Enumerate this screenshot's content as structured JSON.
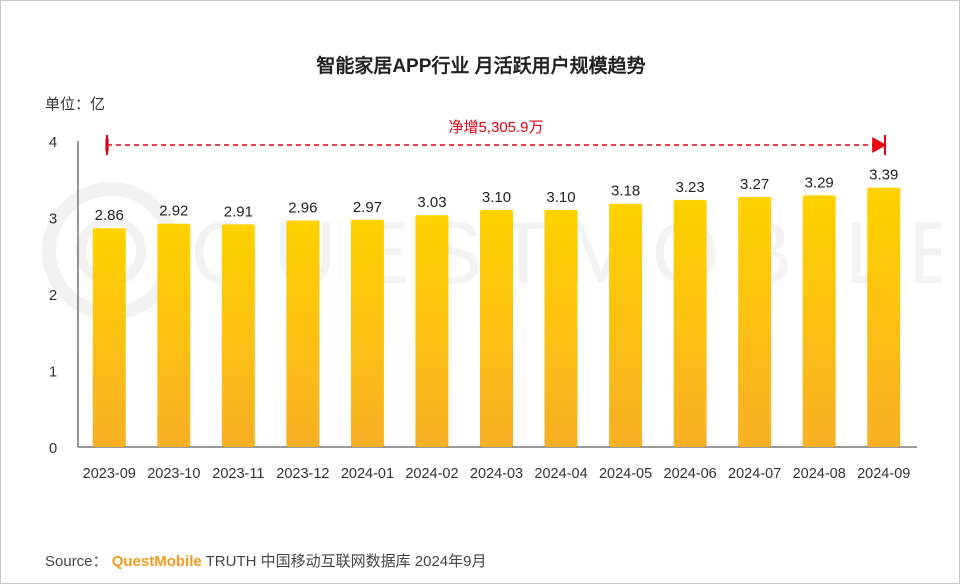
{
  "title": "智能家居APP行业 月活跃用户规模趋势",
  "unit_label": "单位：亿",
  "annotation": "净增5,305.9万",
  "source": {
    "prefix": "Source：",
    "brand": "QuestMobile",
    "suffix": "TRUTH 中国移动互联网数据库 2024年9月"
  },
  "watermark": "QUESTMOBILE",
  "colors": {
    "bar_top": "#ffd200",
    "bar_bottom": "#f8b026",
    "annotation": "#e60012",
    "axis": "#333333"
  },
  "chart_data": {
    "type": "bar",
    "categories": [
      "2023-09",
      "2023-10",
      "2023-11",
      "2023-12",
      "2024-01",
      "2024-02",
      "2024-03",
      "2024-04",
      "2024-05",
      "2024-06",
      "2024-07",
      "2024-08",
      "2024-09"
    ],
    "values": [
      2.86,
      2.92,
      2.91,
      2.96,
      2.97,
      3.03,
      3.1,
      3.1,
      3.18,
      3.23,
      3.27,
      3.29,
      3.39
    ],
    "value_labels": [
      "2.86",
      "2.92",
      "2.91",
      "2.96",
      "2.97",
      "3.03",
      "3.10",
      "3.10",
      "3.18",
      "3.23",
      "3.27",
      "3.29",
      "3.39"
    ],
    "yticks": [
      "0",
      "1",
      "2",
      "3",
      "4"
    ],
    "ylim": [
      0,
      4
    ],
    "grid": false,
    "legend": "none"
  }
}
